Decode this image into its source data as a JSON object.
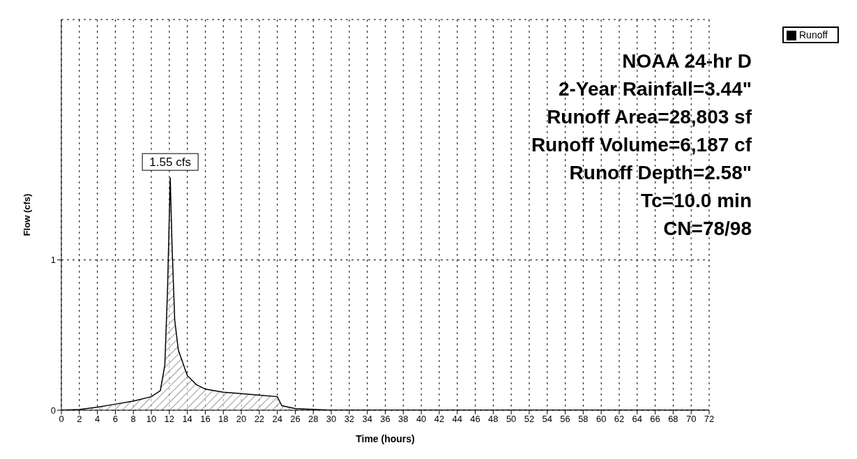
{
  "chart_data": {
    "type": "area",
    "xlabel": "Time  (hours)",
    "ylabel": "Flow  (cfs)",
    "x": [
      0,
      2,
      4,
      6,
      8,
      10,
      11,
      11.5,
      11.8,
      12.0,
      12.1,
      12.3,
      12.6,
      13,
      14,
      15,
      16,
      18,
      20,
      22,
      24,
      24.5,
      26,
      30,
      72
    ],
    "series": [
      {
        "name": "Runoff",
        "color": "#555555",
        "values": [
          0,
          0.005,
          0.02,
          0.04,
          0.06,
          0.09,
          0.13,
          0.3,
          0.8,
          1.3,
          1.55,
          1.1,
          0.6,
          0.4,
          0.23,
          0.17,
          0.14,
          0.12,
          0.11,
          0.1,
          0.09,
          0.03,
          0.01,
          0,
          0
        ]
      }
    ],
    "xlim": [
      0,
      72
    ],
    "xticks": [
      0,
      2,
      4,
      6,
      8,
      10,
      12,
      14,
      16,
      18,
      20,
      22,
      24,
      26,
      28,
      30,
      32,
      34,
      36,
      38,
      40,
      42,
      44,
      46,
      48,
      50,
      52,
      54,
      56,
      58,
      60,
      62,
      64,
      66,
      68,
      70,
      72
    ],
    "ylim": [
      0,
      2.6
    ],
    "yticks": [
      0,
      1
    ],
    "grid": true,
    "legend": "top right",
    "annotations": [
      {
        "text": "1.55 cfs",
        "x": 12.1,
        "y": 1.55
      },
      "NOAA 24-hr D",
      "2-Year Rainfall=3.44\"",
      "Runoff Area=28,803 sf",
      "Runoff Volume=6,187 cf",
      "Runoff Depth=2.58\"",
      "Tc=10.0 min",
      "CN=78/98"
    ]
  }
}
